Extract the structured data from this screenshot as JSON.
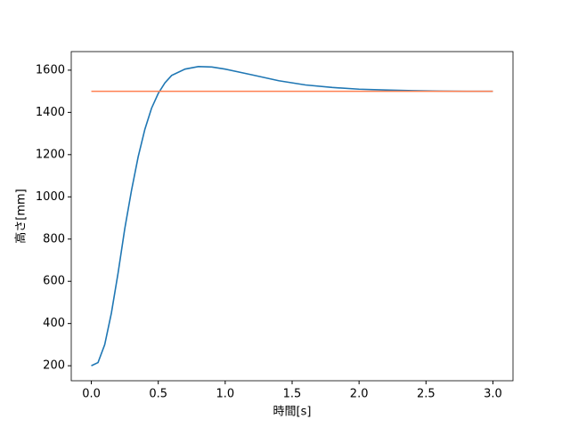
{
  "chart_data": {
    "type": "line",
    "xlabel": "時間[s]",
    "ylabel": "高さ[mm]",
    "xlim": [
      -0.15,
      3.15
    ],
    "ylim": [
      129,
      1688
    ],
    "xticks": [
      {
        "value": 0,
        "label": "0.0"
      },
      {
        "value": 0.5,
        "label": "0.5"
      },
      {
        "value": 1,
        "label": "1.0"
      },
      {
        "value": 1.5,
        "label": "1.5"
      },
      {
        "value": 2,
        "label": "2.0"
      },
      {
        "value": 2.5,
        "label": "2.5"
      },
      {
        "value": 3,
        "label": "3.0"
      }
    ],
    "yticks": [
      200,
      400,
      600,
      800,
      1000,
      1200,
      1400,
      1600
    ],
    "grid": false,
    "series": [
      {
        "color": "#1f77b4",
        "x": [
          0,
          0.05,
          0.1,
          0.15,
          0.2,
          0.25,
          0.3,
          0.35,
          0.4,
          0.45,
          0.5,
          0.55,
          0.6,
          0.7,
          0.8,
          0.9,
          1.0,
          1.2,
          1.4,
          1.6,
          1.8,
          2.0,
          2.2,
          2.4,
          2.6,
          2.8,
          3.0
        ],
        "values": [
          200,
          215,
          300,
          450,
          640,
          850,
          1030,
          1190,
          1320,
          1420,
          1490,
          1540,
          1575,
          1605,
          1617,
          1615,
          1605,
          1578,
          1550,
          1530,
          1518,
          1510,
          1506,
          1503,
          1501,
          1500,
          1500
        ]
      },
      {
        "color": "#ff7f50",
        "x": [
          0,
          3.0
        ],
        "values": [
          1500,
          1500
        ]
      }
    ]
  }
}
